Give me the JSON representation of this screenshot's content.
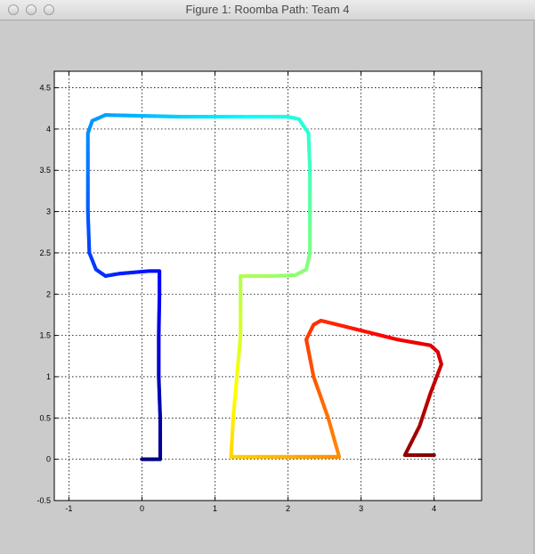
{
  "window": {
    "title": "Figure 1: Roomba Path: Team 4"
  },
  "chart_data": {
    "type": "scatter",
    "title": "",
    "xlabel": "",
    "ylabel": "",
    "xlim": [
      -1.2,
      4.65
    ],
    "ylim": [
      -0.5,
      4.7
    ],
    "xticks": [
      -1,
      0,
      1,
      2,
      3,
      4
    ],
    "yticks": [
      -0.5,
      0,
      0.5,
      1,
      1.5,
      2,
      2.5,
      3,
      3.5,
      4,
      4.5
    ],
    "xtick_labels": [
      "-1",
      "0",
      "1",
      "2",
      "3",
      "4"
    ],
    "ytick_labels": [
      "-0.5",
      "0",
      "0.5",
      "1",
      "1.5",
      "2",
      "2.5",
      "3",
      "3.5",
      "4",
      "4.5"
    ],
    "grid": true,
    "colormap": "jet",
    "series": [
      {
        "points": [
          [
            0,
            0
          ],
          [
            0.25,
            0
          ],
          [
            0.25,
            0.5
          ],
          [
            0.23,
            1.0
          ],
          [
            0.23,
            1.5
          ],
          [
            0.24,
            2.0
          ],
          [
            0.24,
            2.28
          ],
          [
            0.1,
            2.28
          ],
          [
            -0.3,
            2.25
          ],
          [
            -0.5,
            2.22
          ],
          [
            -0.63,
            2.3
          ],
          [
            -0.72,
            2.5
          ],
          [
            -0.74,
            3.0
          ],
          [
            -0.74,
            3.5
          ],
          [
            -0.74,
            3.95
          ],
          [
            -0.68,
            4.1
          ],
          [
            -0.5,
            4.17
          ],
          [
            0,
            4.16
          ],
          [
            0.5,
            4.15
          ],
          [
            1.0,
            4.15
          ],
          [
            1.5,
            4.15
          ],
          [
            2.0,
            4.15
          ],
          [
            2.15,
            4.12
          ],
          [
            2.28,
            3.95
          ],
          [
            2.3,
            3.5
          ],
          [
            2.3,
            3.0
          ],
          [
            2.3,
            2.5
          ],
          [
            2.25,
            2.3
          ],
          [
            2.1,
            2.23
          ],
          [
            1.8,
            2.22
          ],
          [
            1.35,
            2.22
          ],
          [
            1.35,
            1.5
          ],
          [
            1.3,
            1.0
          ],
          [
            1.25,
            0.5
          ],
          [
            1.22,
            0.03
          ],
          [
            1.7,
            0.03
          ],
          [
            2.2,
            0.03
          ],
          [
            2.7,
            0.03
          ],
          [
            2.55,
            0.5
          ],
          [
            2.35,
            1.0
          ],
          [
            2.25,
            1.45
          ],
          [
            2.35,
            1.63
          ],
          [
            2.45,
            1.68
          ],
          [
            3.0,
            1.56
          ],
          [
            3.5,
            1.45
          ],
          [
            3.95,
            1.38
          ],
          [
            4.05,
            1.3
          ],
          [
            4.1,
            1.15
          ],
          [
            3.95,
            0.8
          ],
          [
            3.8,
            0.4
          ],
          [
            3.6,
            0.05
          ],
          [
            3.8,
            0.05
          ],
          [
            4.0,
            0.05
          ]
        ]
      }
    ]
  },
  "colors": {
    "background": "#cbcbcb",
    "plot_background": "#ffffff",
    "grid": "#000000"
  }
}
